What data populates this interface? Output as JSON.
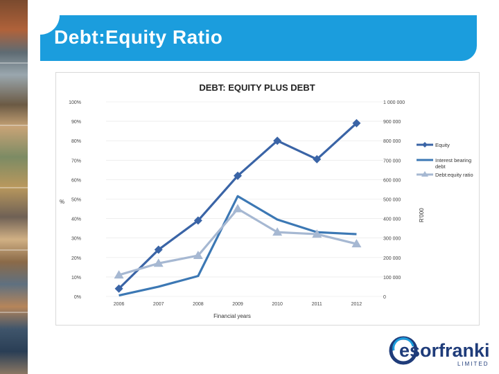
{
  "slide": {
    "title": "Debt:Equity Ratio"
  },
  "logo": {
    "name": "esorfranki",
    "subtitle": "LIMITED",
    "color": "#1f3c7a",
    "accent": "#1b9ddd"
  },
  "chart_data": {
    "type": "line",
    "title": "DEBT: EQUITY PLUS DEBT",
    "xlabel": "Financial years",
    "ylabel_left": "%",
    "ylabel_right": "R'000",
    "categories": [
      "2006",
      "2007",
      "2008",
      "2009",
      "2010",
      "2011",
      "2012"
    ],
    "left_ticks": [
      "0%",
      "10%",
      "20%",
      "30%",
      "40%",
      "50%",
      "60%",
      "70%",
      "80%",
      "90%",
      "100%"
    ],
    "right_ticks": [
      "0",
      "100 000",
      "200 000",
      "300 000",
      "400 000",
      "500 000",
      "600 000",
      "700 000",
      "800 000",
      "900 000",
      "1 000 000"
    ],
    "ylim_right": [
      0,
      1000000
    ],
    "ylim_left": [
      0,
      100
    ],
    "legend_position": "right",
    "series": [
      {
        "name": "Equity",
        "axis": "right",
        "color": "#3a64a6",
        "marker": "diamond",
        "values": [
          40000,
          240000,
          390000,
          620000,
          800000,
          705000,
          890000
        ]
      },
      {
        "name": "Interest bearing debt",
        "axis": "right",
        "color": "#3c78b4",
        "marker": "none",
        "values": [
          5000,
          50000,
          105000,
          515000,
          395000,
          330000,
          320000
        ]
      },
      {
        "name": "Debt:equity ratio",
        "axis": "left",
        "color": "#a6b8d2",
        "marker": "triangle",
        "values": [
          11,
          17,
          21,
          45,
          33,
          32,
          27
        ]
      }
    ]
  }
}
